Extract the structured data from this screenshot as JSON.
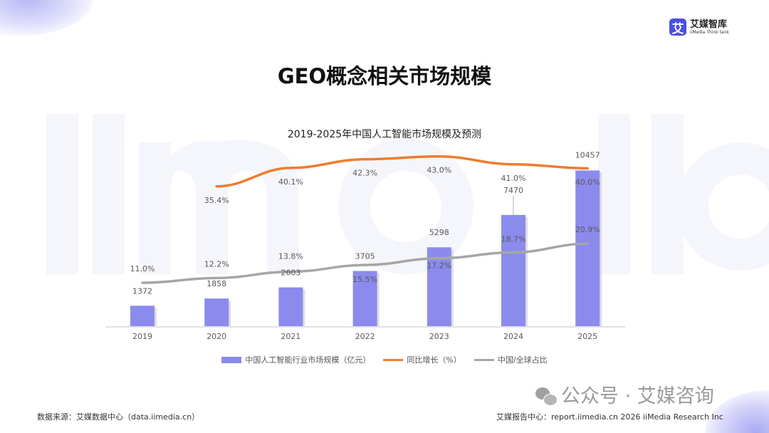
{
  "page_title": "GEO概念相关市场规模",
  "logo": {
    "cn": "艾媒智库",
    "en": "iiMedia Think tank",
    "mark": "艾"
  },
  "watermark": "iimedia",
  "chart_data": {
    "type": "bar+line",
    "title": "2019-2025年中国人工智能市场规模及预测",
    "categories": [
      "2019",
      "2020",
      "2021",
      "2022",
      "2023",
      "2024",
      "2025"
    ],
    "series": [
      {
        "name": "中国人工智能行业市场规模（亿元）",
        "type": "bar",
        "color": "#8b8bee",
        "values": [
          1372,
          1858,
          2603,
          3705,
          5298,
          7470,
          10457
        ],
        "labels": [
          "1372",
          "1858",
          "2603",
          "3705",
          "5298",
          "7470",
          "10457"
        ]
      },
      {
        "name": "同比增长（%）",
        "type": "line",
        "color": "#ed7d31",
        "values": [
          null,
          35.4,
          40.1,
          42.3,
          43.0,
          41.0,
          40.0
        ],
        "labels": [
          "",
          "35.4%",
          "40.1%",
          "42.3%",
          "43.0%",
          "41.0%",
          "40.0%"
        ]
      },
      {
        "name": "中国/全球占比",
        "type": "line",
        "color": "#a6a6a6",
        "values": [
          11.0,
          12.2,
          13.8,
          15.5,
          17.2,
          18.7,
          20.9
        ],
        "labels": [
          "11.0%",
          "12.2%",
          "13.8%",
          "15.5%",
          "17.2%",
          "18.7%",
          "20.9%"
        ]
      }
    ],
    "ylim_bar": [
      0,
      11000
    ],
    "ylim_pct": [
      0,
      41.5
    ],
    "grid": false,
    "legend_position": "bottom"
  },
  "footer": {
    "source": "数据来源：艾媒数据中心（data.iimedia.cn）",
    "report": "艾媒报告中心：report.iimedia.cn  2026 iiMedia Research Inc",
    "wechat": "公众号 · 艾媒咨询"
  }
}
